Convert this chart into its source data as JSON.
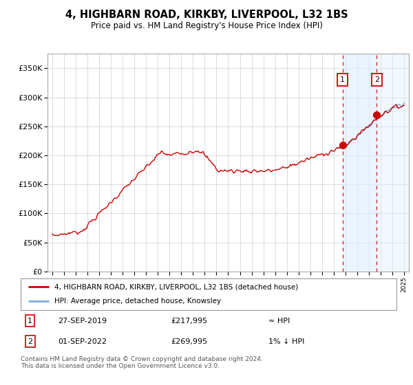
{
  "title": "4, HIGHBARN ROAD, KIRKBY, LIVERPOOL, L32 1BS",
  "subtitle": "Price paid vs. HM Land Registry's House Price Index (HPI)",
  "legend_line1": "4, HIGHBARN ROAD, KIRKBY, LIVERPOOL, L32 1BS (detached house)",
  "legend_line2": "HPI: Average price, detached house, Knowsley",
  "annotation1_date": "27-SEP-2019",
  "annotation1_price": "£217,995",
  "annotation1_note": "≈ HPI",
  "annotation2_date": "01-SEP-2022",
  "annotation2_price": "£269,995",
  "annotation2_note": "1% ↓ HPI",
  "footer": "Contains HM Land Registry data © Crown copyright and database right 2024.\nThis data is licensed under the Open Government Licence v3.0.",
  "ylim": [
    0,
    375000
  ],
  "yticks": [
    0,
    50000,
    100000,
    150000,
    200000,
    250000,
    300000,
    350000
  ],
  "hpi_color": "#7aaddb",
  "price_color": "#cc0000",
  "sale1_x": 2019.75,
  "sale2_x": 2022.67,
  "sale1_y": 217995,
  "sale2_y": 269995,
  "background_color": "#ffffff",
  "grid_color": "#cccccc",
  "shade_color": "#ddeeff",
  "xlim_left": 1994.6,
  "xlim_right": 2025.4
}
